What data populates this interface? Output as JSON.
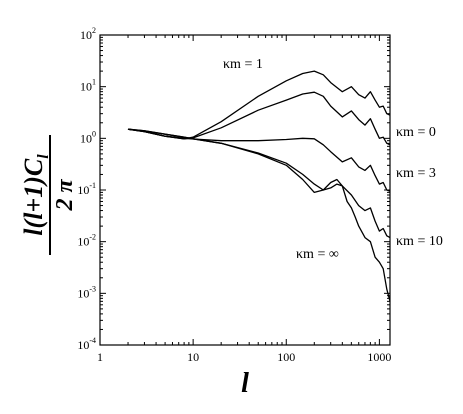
{
  "chart_data": {
    "type": "line",
    "x_scale": "log",
    "y_scale": "log",
    "xlim": [
      1,
      1300
    ],
    "ylim": [
      0.0001,
      100
    ],
    "xlabel": "l",
    "ylabel": {
      "numerator": "l(l+1)C",
      "numerator_subscript": "l",
      "denominator": "2 π"
    },
    "x_ticks": [
      "1",
      "10",
      "100",
      "1000"
    ],
    "y_ticks": [
      {
        "base": "10",
        "exp": "-4",
        "value": 0.0001
      },
      {
        "base": "10",
        "exp": "-3",
        "value": 0.001
      },
      {
        "base": "10",
        "exp": "-2",
        "value": 0.01
      },
      {
        "base": "10",
        "exp": "-1",
        "value": 0.1
      },
      {
        "base": "10",
        "exp": "0",
        "value": 1
      },
      {
        "base": "10",
        "exp": "1",
        "value": 10
      },
      {
        "base": "10",
        "exp": "2",
        "value": 100
      }
    ],
    "grid": false,
    "legend": "none",
    "series": [
      {
        "name": "κm = 1",
        "points": [
          [
            2,
            1.5
          ],
          [
            3,
            1.35
          ],
          [
            5,
            1.1
          ],
          [
            8,
            0.98
          ],
          [
            10,
            1.05
          ],
          [
            20,
            2.1
          ],
          [
            50,
            6.5
          ],
          [
            100,
            13
          ],
          [
            150,
            18
          ],
          [
            200,
            20
          ],
          [
            250,
            17
          ],
          [
            300,
            12
          ],
          [
            400,
            8
          ],
          [
            500,
            10
          ],
          [
            600,
            7
          ],
          [
            700,
            6
          ],
          [
            800,
            8
          ],
          [
            900,
            5.5
          ],
          [
            1000,
            4
          ],
          [
            1100,
            4.2
          ],
          [
            1200,
            3
          ],
          [
            1300,
            2.8
          ]
        ]
      },
      {
        "name": "κm = 0",
        "points": [
          [
            2,
            1.5
          ],
          [
            3,
            1.35
          ],
          [
            5,
            1.1
          ],
          [
            8,
            0.98
          ],
          [
            10,
            1.02
          ],
          [
            20,
            1.6
          ],
          [
            50,
            3.5
          ],
          [
            100,
            5.5
          ],
          [
            150,
            7.2
          ],
          [
            200,
            7.8
          ],
          [
            250,
            6.5
          ],
          [
            300,
            4.2
          ],
          [
            400,
            2.6
          ],
          [
            500,
            3.4
          ],
          [
            600,
            2.3
          ],
          [
            700,
            1.8
          ],
          [
            800,
            2.4
          ],
          [
            900,
            1.5
          ],
          [
            1000,
            1.0
          ],
          [
            1100,
            1.05
          ],
          [
            1200,
            0.8
          ],
          [
            1300,
            0.75
          ]
        ]
      },
      {
        "name": "κm = 3",
        "points": [
          [
            2,
            1.5
          ],
          [
            3,
            1.35
          ],
          [
            5,
            1.1
          ],
          [
            8,
            1.0
          ],
          [
            10,
            0.97
          ],
          [
            20,
            0.9
          ],
          [
            50,
            0.9
          ],
          [
            100,
            0.95
          ],
          [
            150,
            1.0
          ],
          [
            200,
            0.98
          ],
          [
            250,
            0.75
          ],
          [
            300,
            0.55
          ],
          [
            400,
            0.35
          ],
          [
            500,
            0.42
          ],
          [
            600,
            0.28
          ],
          [
            700,
            0.24
          ],
          [
            800,
            0.3
          ],
          [
            900,
            0.19
          ],
          [
            1000,
            0.13
          ],
          [
            1100,
            0.14
          ],
          [
            1200,
            0.1
          ],
          [
            1300,
            0.095
          ]
        ]
      },
      {
        "name": "κm = 10",
        "points": [
          [
            2,
            1.5
          ],
          [
            3,
            1.4
          ],
          [
            5,
            1.2
          ],
          [
            8,
            1.05
          ],
          [
            10,
            0.98
          ],
          [
            20,
            0.8
          ],
          [
            50,
            0.52
          ],
          [
            100,
            0.33
          ],
          [
            150,
            0.2
          ],
          [
            200,
            0.13
          ],
          [
            250,
            0.1
          ],
          [
            300,
            0.11
          ],
          [
            350,
            0.13
          ],
          [
            400,
            0.12
          ],
          [
            500,
            0.08
          ],
          [
            600,
            0.05
          ],
          [
            700,
            0.04
          ],
          [
            800,
            0.045
          ],
          [
            900,
            0.025
          ],
          [
            1000,
            0.016
          ],
          [
            1100,
            0.018
          ],
          [
            1200,
            0.013
          ],
          [
            1300,
            0.012
          ]
        ]
      },
      {
        "name": "κm = ∞",
        "points": [
          [
            2,
            1.5
          ],
          [
            3,
            1.4
          ],
          [
            5,
            1.2
          ],
          [
            8,
            1.05
          ],
          [
            10,
            0.98
          ],
          [
            20,
            0.8
          ],
          [
            50,
            0.5
          ],
          [
            100,
            0.3
          ],
          [
            150,
            0.16
          ],
          [
            200,
            0.09
          ],
          [
            250,
            0.1
          ],
          [
            300,
            0.14
          ],
          [
            350,
            0.16
          ],
          [
            400,
            0.12
          ],
          [
            450,
            0.06
          ],
          [
            500,
            0.045
          ],
          [
            550,
            0.03
          ],
          [
            600,
            0.02
          ],
          [
            700,
            0.012
          ],
          [
            800,
            0.01
          ],
          [
            900,
            0.005
          ],
          [
            1000,
            0.004
          ],
          [
            1100,
            0.003
          ],
          [
            1200,
            0.0012
          ],
          [
            1300,
            0.0007
          ]
        ]
      }
    ],
    "annotations": [
      {
        "series": "κm = 1",
        "text": "κm = 1"
      },
      {
        "series": "κm = 0",
        "text": "κm = 0"
      },
      {
        "series": "κm = 3",
        "text": "κm = 3"
      },
      {
        "series": "κm = 10",
        "text": "κm = 10"
      },
      {
        "series": "κm = ∞",
        "text": "κm = ∞"
      }
    ]
  }
}
